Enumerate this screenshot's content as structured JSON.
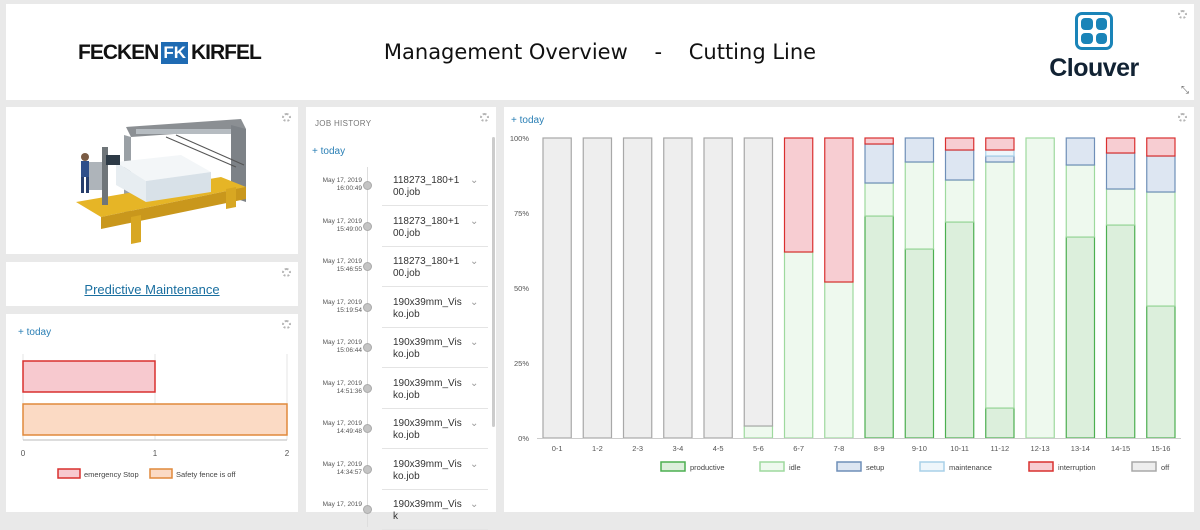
{
  "header": {
    "brand_left": [
      "FECKEN",
      "FK",
      "KIRFEL"
    ],
    "title_left": "Management Overview",
    "title_sep": "-",
    "title_right": "Cutting Line",
    "brand_right": "Clouver"
  },
  "maintenance": {
    "link_label": "Predictive Maintenance"
  },
  "alarms": {
    "today_label": "+ today",
    "chart_data": {
      "type": "bar",
      "orientation": "horizontal",
      "categories": [
        "emergency Stop",
        "Safety fence is off"
      ],
      "values": [
        1,
        2
      ],
      "xlim": [
        0,
        2
      ],
      "xticks": [
        "0",
        "1",
        "2"
      ],
      "legend": [
        {
          "name": "emergency Stop",
          "fill": "#f7c9cf",
          "stroke": "#d9302f"
        },
        {
          "name": "Safety fence is off",
          "fill": "#fbdac4",
          "stroke": "#e0893b"
        }
      ],
      "legend_position": "bottom",
      "grid": true
    }
  },
  "job_history": {
    "title": "JOB HISTORY",
    "today_label": "+ today",
    "jobs": [
      {
        "date": "May 17, 2019",
        "time": "16:00:49",
        "name": "118273_180+100.job"
      },
      {
        "date": "May 17, 2019",
        "time": "15:49:00",
        "name": "118273_180+100.job"
      },
      {
        "date": "May 17, 2019",
        "time": "15:46:55",
        "name": "118273_180+100.job"
      },
      {
        "date": "May 17, 2019",
        "time": "15:19:54",
        "name": "190x39mm_Visko.job"
      },
      {
        "date": "May 17, 2019",
        "time": "15:06:44",
        "name": "190x39mm_Visko.job"
      },
      {
        "date": "May 17, 2019",
        "time": "14:51:36",
        "name": "190x39mm_Visko.job"
      },
      {
        "date": "May 17, 2019",
        "time": "14:49:48",
        "name": "190x39mm_Visko.job"
      },
      {
        "date": "May 17, 2019",
        "time": "14:34:57",
        "name": "190x39mm_Visko.job"
      },
      {
        "date": "May 17, 2019",
        "time": "",
        "name": "190x39mm_Visk"
      }
    ]
  },
  "utilization": {
    "today_label": "+ today",
    "chart_data": {
      "type": "bar",
      "stacked": true,
      "percent": true,
      "categories": [
        "0-1",
        "1-2",
        "2-3",
        "3-4",
        "4-5",
        "5-6",
        "6-7",
        "7-8",
        "8-9",
        "9-10",
        "10-11",
        "11-12",
        "12-13",
        "13-14",
        "14-15",
        "15-16"
      ],
      "yticks": [
        "0%",
        "25%",
        "50%",
        "75%",
        "100%"
      ],
      "ylim": [
        0,
        100
      ],
      "series": [
        {
          "name": "productive",
          "fill": "#dcefdc",
          "stroke": "#4caf50",
          "values": [
            0,
            0,
            0,
            0,
            0,
            0,
            0,
            0,
            74,
            63,
            72,
            10,
            0,
            67,
            71,
            44
          ]
        },
        {
          "name": "idle",
          "fill": "#eef9ee",
          "stroke": "#9ed99e",
          "values": [
            0,
            0,
            0,
            0,
            0,
            4,
            62,
            52,
            11,
            29,
            14,
            82,
            100,
            24,
            12,
            38
          ]
        },
        {
          "name": "setup",
          "fill": "#dde6f2",
          "stroke": "#6f8fb8",
          "values": [
            0,
            0,
            0,
            0,
            0,
            0,
            0,
            0,
            13,
            8,
            10,
            2,
            0,
            9,
            12,
            12
          ]
        },
        {
          "name": "maintenance",
          "fill": "#eef6fb",
          "stroke": "#a9d0e8",
          "values": [
            0,
            0,
            0,
            0,
            0,
            0,
            0,
            0,
            0,
            0,
            0,
            2,
            0,
            0,
            0,
            0
          ]
        },
        {
          "name": "interruption",
          "fill": "#f7cdd2",
          "stroke": "#d9302f",
          "values": [
            0,
            0,
            0,
            0,
            0,
            0,
            38,
            48,
            2,
            0,
            4,
            4,
            0,
            0,
            5,
            6
          ]
        },
        {
          "name": "off",
          "fill": "#eeeeee",
          "stroke": "#a8a8a8",
          "values": [
            100,
            100,
            100,
            100,
            100,
            96,
            0,
            0,
            0,
            0,
            0,
            0,
            0,
            0,
            0,
            0
          ]
        }
      ],
      "legend_position": "bottom"
    }
  },
  "colors": {
    "accent": "#2a7fb5",
    "brand_blue": "#1a84b8"
  }
}
